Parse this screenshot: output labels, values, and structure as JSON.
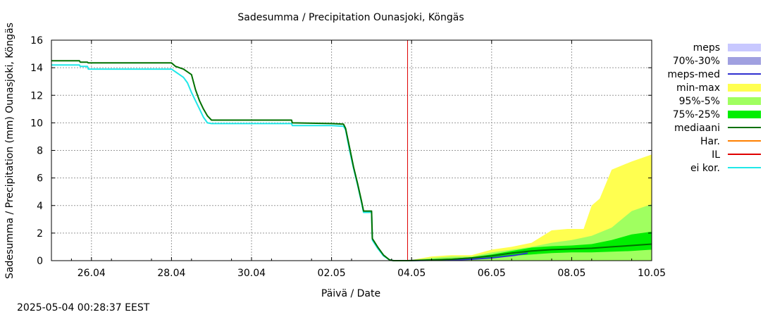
{
  "chart_data": {
    "type": "area",
    "title": "Sadesumma / Precipitation  Ounasjoki, Köngäs",
    "xlabel": "Päivä / Date",
    "ylabel": "Sadesumma / Precipitation (mm)  Ounasjoki, Köngäs",
    "x_unit": "days since 2025-04-25 00:00",
    "xlim": [
      0,
      15
    ],
    "ylim": [
      0,
      16
    ],
    "y_ticks": [
      0,
      2,
      4,
      6,
      8,
      10,
      12,
      14,
      16
    ],
    "x_ticks": [
      {
        "x": 1,
        "label": "26.04"
      },
      {
        "x": 3,
        "label": "28.04"
      },
      {
        "x": 5,
        "label": "30.04"
      },
      {
        "x": 7,
        "label": "02.05"
      },
      {
        "x": 9,
        "label": "04.05"
      },
      {
        "x": 11,
        "label": "06.05"
      },
      {
        "x": 13,
        "label": "08.05"
      },
      {
        "x": 15,
        "label": "10.05"
      }
    ],
    "grid": true,
    "legend_position": "right",
    "colors": {
      "meps": "#c8c8ff",
      "meps_70_30": "#a0a0e0",
      "meps_med": "#3030d0",
      "min_max": "#ffff50",
      "p95_5": "#a0ff60",
      "p75_25": "#00ee00",
      "median": "#007000",
      "har": "#ff8000",
      "il": "#e00000",
      "ei_kor": "#20e8e8"
    },
    "legend": [
      {
        "key": "meps",
        "label": "meps",
        "style": "box"
      },
      {
        "key": "meps_70_30",
        "label": "70%-30%",
        "style": "box"
      },
      {
        "key": "meps_med",
        "label": "meps-med",
        "style": "line"
      },
      {
        "key": "min_max",
        "label": "min-max",
        "style": "box"
      },
      {
        "key": "p95_5",
        "label": "95%-5%",
        "style": "box"
      },
      {
        "key": "p75_25",
        "label": "75%-25%",
        "style": "box"
      },
      {
        "key": "median",
        "label": "mediaani",
        "style": "line"
      },
      {
        "key": "har",
        "label": "Har.",
        "style": "line"
      },
      {
        "key": "il",
        "label": "IL",
        "style": "line"
      },
      {
        "key": "ei_kor",
        "label": "ei kor.",
        "style": "line"
      }
    ],
    "il_line_x": 8.9,
    "series": [
      {
        "name": "mediaani",
        "key": "median",
        "points": [
          [
            0,
            14.5
          ],
          [
            0.7,
            14.5
          ],
          [
            0.72,
            14.4
          ],
          [
            0.9,
            14.4
          ],
          [
            0.92,
            14.35
          ],
          [
            3.0,
            14.35
          ],
          [
            3.1,
            14.1
          ],
          [
            3.3,
            13.9
          ],
          [
            3.5,
            13.5
          ],
          [
            3.6,
            12.4
          ],
          [
            3.7,
            11.6
          ],
          [
            3.8,
            11.0
          ],
          [
            3.9,
            10.5
          ],
          [
            4.0,
            10.2
          ],
          [
            6.0,
            10.2
          ],
          [
            6.02,
            10.0
          ],
          [
            7.0,
            9.95
          ],
          [
            7.3,
            9.9
          ],
          [
            7.35,
            9.6
          ],
          [
            7.45,
            8.2
          ],
          [
            7.55,
            6.8
          ],
          [
            7.65,
            5.6
          ],
          [
            7.75,
            4.3
          ],
          [
            7.8,
            3.6
          ],
          [
            8.0,
            3.6
          ],
          [
            8.02,
            1.6
          ],
          [
            8.15,
            1.0
          ],
          [
            8.3,
            0.4
          ],
          [
            8.45,
            0.05
          ],
          [
            8.55,
            0.0
          ],
          [
            8.9,
            0.0
          ],
          [
            9.5,
            0.05
          ],
          [
            10.0,
            0.1
          ],
          [
            10.5,
            0.2
          ],
          [
            11.0,
            0.35
          ],
          [
            11.5,
            0.55
          ],
          [
            12.0,
            0.7
          ],
          [
            12.5,
            0.8
          ],
          [
            13.0,
            0.85
          ],
          [
            13.5,
            0.9
          ],
          [
            14.0,
            1.0
          ],
          [
            14.5,
            1.1
          ],
          [
            15.0,
            1.2
          ]
        ]
      },
      {
        "name": "ei kor.",
        "key": "ei_kor",
        "points": [
          [
            0,
            14.2
          ],
          [
            0.7,
            14.2
          ],
          [
            0.72,
            14.1
          ],
          [
            0.9,
            14.1
          ],
          [
            0.92,
            13.9
          ],
          [
            3.0,
            13.9
          ],
          [
            3.1,
            13.7
          ],
          [
            3.2,
            13.5
          ],
          [
            3.3,
            13.3
          ],
          [
            3.4,
            12.9
          ],
          [
            3.5,
            12.2
          ],
          [
            3.6,
            11.6
          ],
          [
            3.7,
            11.0
          ],
          [
            3.8,
            10.4
          ],
          [
            3.9,
            10.0
          ],
          [
            4.0,
            9.95
          ],
          [
            6.0,
            9.95
          ],
          [
            6.02,
            9.8
          ],
          [
            7.0,
            9.8
          ],
          [
            7.3,
            9.75
          ],
          [
            7.35,
            9.5
          ],
          [
            7.45,
            8.0
          ],
          [
            7.55,
            6.7
          ],
          [
            7.65,
            5.5
          ],
          [
            7.75,
            4.2
          ],
          [
            7.8,
            3.5
          ],
          [
            8.0,
            3.5
          ],
          [
            8.02,
            1.5
          ],
          [
            8.15,
            0.9
          ],
          [
            8.3,
            0.35
          ],
          [
            8.45,
            0.05
          ],
          [
            8.55,
            0.0
          ],
          [
            8.9,
            0.0
          ]
        ]
      },
      {
        "name": "meps-med",
        "key": "meps_med",
        "points": [
          [
            8.9,
            0.0
          ],
          [
            10.0,
            0.05
          ],
          [
            10.5,
            0.1
          ],
          [
            11.0,
            0.2
          ],
          [
            11.3,
            0.3
          ],
          [
            11.6,
            0.4
          ],
          [
            11.8,
            0.5
          ],
          [
            11.9,
            0.55
          ]
        ]
      }
    ],
    "bands": [
      {
        "name": "min-max",
        "key": "min_max",
        "x": [
          8.9,
          9.5,
          10.0,
          10.5,
          11.0,
          11.5,
          12.0,
          12.5,
          12.9,
          13.0,
          13.3,
          13.5,
          13.7,
          14.0,
          14.5,
          15.0
        ],
        "lower": [
          0,
          0,
          0,
          0,
          0,
          0,
          0,
          0,
          0,
          0,
          0,
          0,
          0,
          0,
          0,
          0
        ],
        "upper": [
          0.0,
          0.3,
          0.4,
          0.4,
          0.8,
          1.0,
          1.3,
          2.2,
          2.3,
          2.3,
          2.3,
          4.0,
          4.5,
          6.6,
          7.2,
          7.7
        ]
      },
      {
        "name": "95%-5%",
        "key": "p95_5",
        "x": [
          8.9,
          9.5,
          10.0,
          10.5,
          11.0,
          11.5,
          12.0,
          12.5,
          13.0,
          13.5,
          14.0,
          14.5,
          15.0
        ],
        "lower": [
          0,
          0,
          0,
          0,
          0,
          0,
          0,
          0,
          0,
          0,
          0,
          0,
          0
        ],
        "upper": [
          0.0,
          0.2,
          0.3,
          0.3,
          0.6,
          0.8,
          1.0,
          1.3,
          1.5,
          1.8,
          2.4,
          3.6,
          4.1
        ]
      },
      {
        "name": "75%-25%",
        "key": "p75_25",
        "x": [
          8.9,
          9.5,
          10.0,
          10.5,
          11.0,
          11.5,
          12.0,
          12.5,
          13.0,
          13.5,
          14.0,
          14.5,
          15.0
        ],
        "lower": [
          0.0,
          0.0,
          0.05,
          0.1,
          0.2,
          0.35,
          0.45,
          0.55,
          0.6,
          0.6,
          0.65,
          0.7,
          0.8
        ],
        "upper": [
          0.0,
          0.1,
          0.15,
          0.25,
          0.45,
          0.7,
          0.95,
          1.05,
          1.1,
          1.2,
          1.5,
          1.9,
          2.1
        ]
      }
    ]
  },
  "timestamp": "2025-05-04 00:28:37 EEST"
}
